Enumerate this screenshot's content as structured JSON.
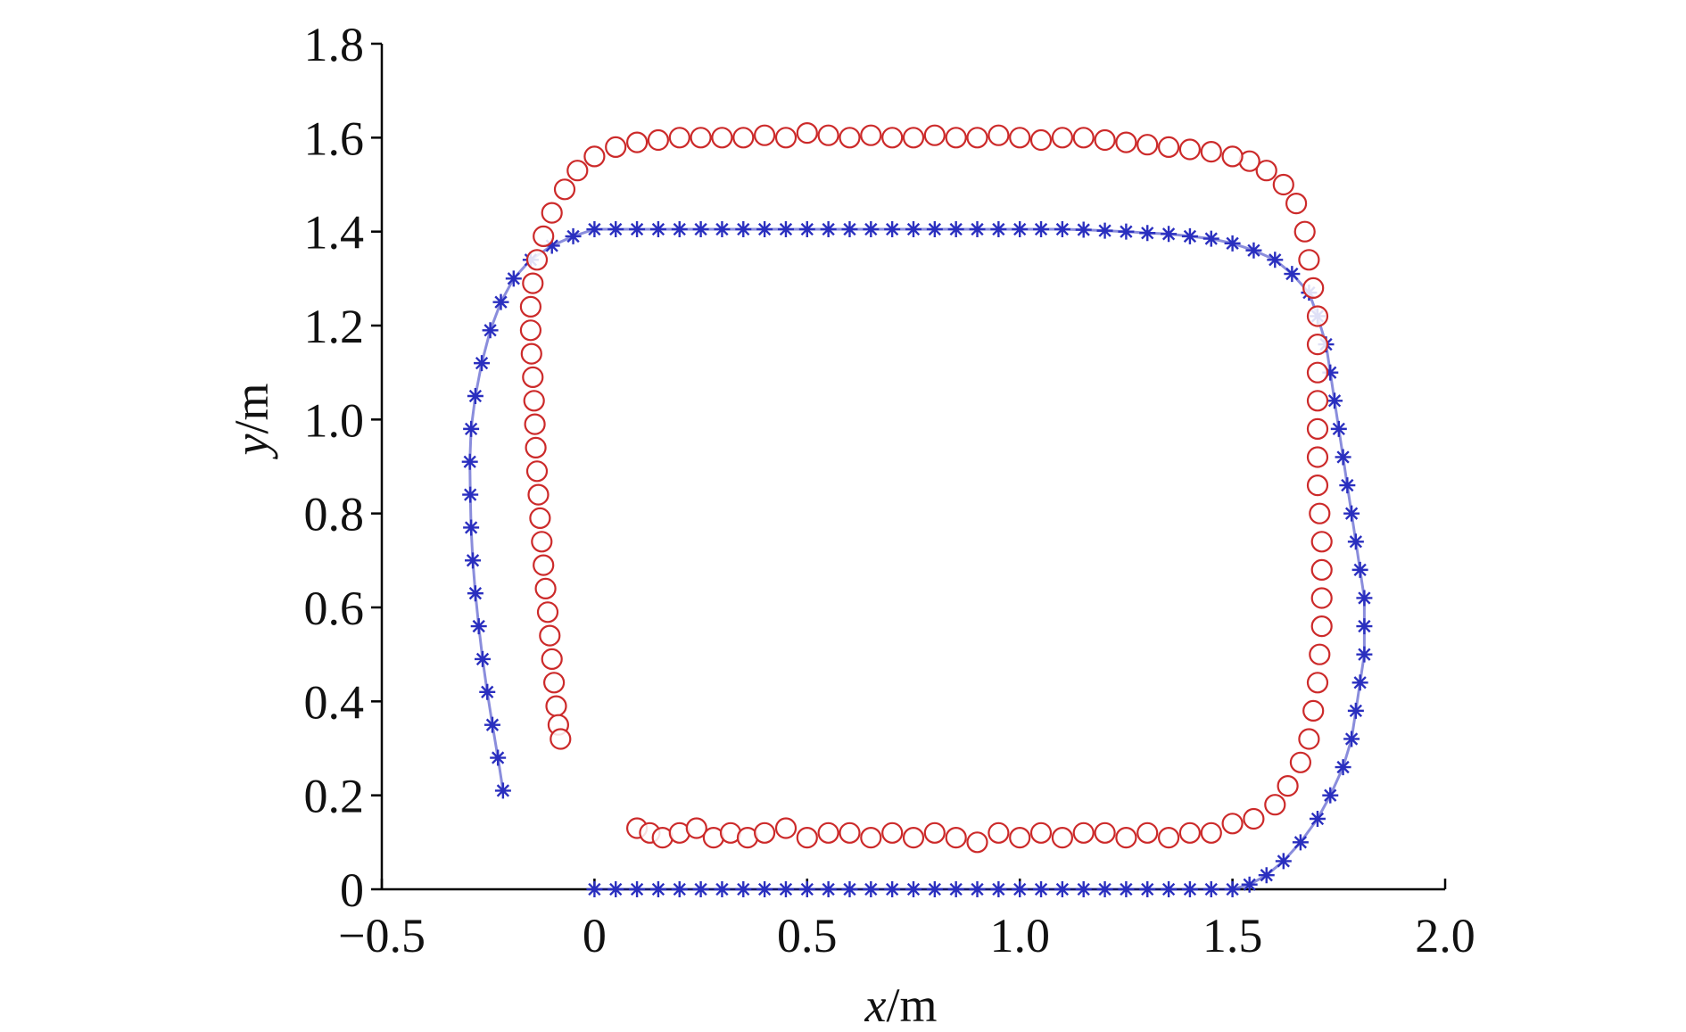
{
  "chart_data": {
    "type": "scatter",
    "xlabel_var": "x",
    "xlabel_unit": "/m",
    "ylabel_var": "y",
    "ylabel_unit": "/m",
    "xlim": [
      -0.5,
      2.0
    ],
    "ylim": [
      0,
      1.8
    ],
    "x_ticks": [
      {
        "value": -0.5,
        "label": "−0.5"
      },
      {
        "value": 0,
        "label": "0"
      },
      {
        "value": 0.5,
        "label": "0.5"
      },
      {
        "value": 1.0,
        "label": "1.0"
      },
      {
        "value": 1.5,
        "label": "1.5"
      },
      {
        "value": 2.0,
        "label": "2.0"
      }
    ],
    "y_ticks": [
      {
        "value": 0,
        "label": "0"
      },
      {
        "value": 0.2,
        "label": "0.2"
      },
      {
        "value": 0.4,
        "label": "0.4"
      },
      {
        "value": 0.6,
        "label": "0.6"
      },
      {
        "value": 0.8,
        "label": "0.8"
      },
      {
        "value": 1.0,
        "label": "1.0"
      },
      {
        "value": 1.2,
        "label": "1.2"
      },
      {
        "value": 1.4,
        "label": "1.4"
      },
      {
        "value": 1.6,
        "label": "1.6"
      },
      {
        "value": 1.8,
        "label": "1.8"
      }
    ],
    "grid": false,
    "legend": "none",
    "series": [
      {
        "marker": "star",
        "color": "#2a2fbf",
        "points": [
          [
            0.0,
            0.0
          ],
          [
            0.05,
            0.0
          ],
          [
            0.1,
            0.0
          ],
          [
            0.15,
            0.0
          ],
          [
            0.2,
            0.0
          ],
          [
            0.25,
            0.0
          ],
          [
            0.3,
            0.0
          ],
          [
            0.35,
            0.0
          ],
          [
            0.4,
            0.0
          ],
          [
            0.45,
            0.0
          ],
          [
            0.5,
            0.0
          ],
          [
            0.55,
            0.0
          ],
          [
            0.6,
            0.0
          ],
          [
            0.65,
            0.0
          ],
          [
            0.7,
            0.0
          ],
          [
            0.75,
            0.0
          ],
          [
            0.8,
            0.0
          ],
          [
            0.85,
            0.0
          ],
          [
            0.9,
            0.0
          ],
          [
            0.95,
            0.0
          ],
          [
            1.0,
            0.0
          ],
          [
            1.05,
            0.0
          ],
          [
            1.1,
            0.0
          ],
          [
            1.15,
            0.0
          ],
          [
            1.2,
            0.0
          ],
          [
            1.25,
            0.0
          ],
          [
            1.3,
            0.0
          ],
          [
            1.35,
            0.0
          ],
          [
            1.4,
            0.0
          ],
          [
            1.45,
            0.0
          ],
          [
            1.5,
            0.0
          ],
          [
            1.54,
            0.01
          ],
          [
            1.58,
            0.03
          ],
          [
            1.62,
            0.06
          ],
          [
            1.66,
            0.1
          ],
          [
            1.7,
            0.15
          ],
          [
            1.73,
            0.2
          ],
          [
            1.76,
            0.26
          ],
          [
            1.78,
            0.32
          ],
          [
            1.79,
            0.38
          ],
          [
            1.8,
            0.44
          ],
          [
            1.81,
            0.5
          ],
          [
            1.81,
            0.56
          ],
          [
            1.81,
            0.62
          ],
          [
            1.8,
            0.68
          ],
          [
            1.79,
            0.74
          ],
          [
            1.78,
            0.8
          ],
          [
            1.77,
            0.86
          ],
          [
            1.76,
            0.92
          ],
          [
            1.75,
            0.98
          ],
          [
            1.74,
            1.04
          ],
          [
            1.73,
            1.1
          ],
          [
            1.72,
            1.16
          ],
          [
            1.7,
            1.22
          ],
          [
            1.68,
            1.27
          ],
          [
            1.64,
            1.31
          ],
          [
            1.6,
            1.34
          ],
          [
            1.55,
            1.36
          ],
          [
            1.5,
            1.375
          ],
          [
            1.45,
            1.385
          ],
          [
            1.4,
            1.39
          ],
          [
            1.35,
            1.395
          ],
          [
            1.3,
            1.397
          ],
          [
            1.25,
            1.4
          ],
          [
            1.2,
            1.402
          ],
          [
            1.15,
            1.404
          ],
          [
            1.1,
            1.405
          ],
          [
            1.05,
            1.405
          ],
          [
            1.0,
            1.405
          ],
          [
            0.95,
            1.405
          ],
          [
            0.9,
            1.405
          ],
          [
            0.85,
            1.405
          ],
          [
            0.8,
            1.405
          ],
          [
            0.75,
            1.405
          ],
          [
            0.7,
            1.405
          ],
          [
            0.65,
            1.405
          ],
          [
            0.6,
            1.405
          ],
          [
            0.55,
            1.405
          ],
          [
            0.5,
            1.405
          ],
          [
            0.45,
            1.405
          ],
          [
            0.4,
            1.405
          ],
          [
            0.35,
            1.405
          ],
          [
            0.3,
            1.405
          ],
          [
            0.25,
            1.405
          ],
          [
            0.2,
            1.405
          ],
          [
            0.15,
            1.405
          ],
          [
            0.1,
            1.405
          ],
          [
            0.05,
            1.405
          ],
          [
            0.0,
            1.405
          ],
          [
            -0.05,
            1.39
          ],
          [
            -0.1,
            1.37
          ],
          [
            -0.15,
            1.34
          ],
          [
            -0.19,
            1.3
          ],
          [
            -0.22,
            1.25
          ],
          [
            -0.245,
            1.19
          ],
          [
            -0.265,
            1.12
          ],
          [
            -0.28,
            1.05
          ],
          [
            -0.29,
            0.98
          ],
          [
            -0.293,
            0.91
          ],
          [
            -0.292,
            0.84
          ],
          [
            -0.29,
            0.77
          ],
          [
            -0.286,
            0.7
          ],
          [
            -0.28,
            0.63
          ],
          [
            -0.272,
            0.56
          ],
          [
            -0.263,
            0.49
          ],
          [
            -0.252,
            0.42
          ],
          [
            -0.24,
            0.35
          ],
          [
            -0.227,
            0.28
          ],
          [
            -0.215,
            0.21
          ]
        ]
      },
      {
        "marker": "circle",
        "color": "#cc2a2a",
        "points": [
          [
            0.1,
            0.13
          ],
          [
            0.13,
            0.12
          ],
          [
            0.16,
            0.11
          ],
          [
            0.2,
            0.12
          ],
          [
            0.24,
            0.13
          ],
          [
            0.28,
            0.11
          ],
          [
            0.32,
            0.12
          ],
          [
            0.36,
            0.11
          ],
          [
            0.4,
            0.12
          ],
          [
            0.45,
            0.13
          ],
          [
            0.5,
            0.11
          ],
          [
            0.55,
            0.12
          ],
          [
            0.6,
            0.12
          ],
          [
            0.65,
            0.11
          ],
          [
            0.7,
            0.12
          ],
          [
            0.75,
            0.11
          ],
          [
            0.8,
            0.12
          ],
          [
            0.85,
            0.11
          ],
          [
            0.9,
            0.1
          ],
          [
            0.95,
            0.12
          ],
          [
            1.0,
            0.11
          ],
          [
            1.05,
            0.12
          ],
          [
            1.1,
            0.11
          ],
          [
            1.15,
            0.12
          ],
          [
            1.2,
            0.12
          ],
          [
            1.25,
            0.11
          ],
          [
            1.3,
            0.12
          ],
          [
            1.35,
            0.11
          ],
          [
            1.4,
            0.12
          ],
          [
            1.45,
            0.12
          ],
          [
            1.5,
            0.14
          ],
          [
            1.55,
            0.15
          ],
          [
            1.6,
            0.18
          ],
          [
            1.63,
            0.22
          ],
          [
            1.66,
            0.27
          ],
          [
            1.68,
            0.32
          ],
          [
            1.69,
            0.38
          ],
          [
            1.7,
            0.44
          ],
          [
            1.705,
            0.5
          ],
          [
            1.71,
            0.56
          ],
          [
            1.71,
            0.62
          ],
          [
            1.71,
            0.68
          ],
          [
            1.71,
            0.74
          ],
          [
            1.705,
            0.8
          ],
          [
            1.7,
            0.86
          ],
          [
            1.7,
            0.92
          ],
          [
            1.7,
            0.98
          ],
          [
            1.7,
            1.04
          ],
          [
            1.7,
            1.1
          ],
          [
            1.7,
            1.16
          ],
          [
            1.7,
            1.22
          ],
          [
            1.69,
            1.28
          ],
          [
            1.68,
            1.34
          ],
          [
            1.67,
            1.4
          ],
          [
            1.65,
            1.46
          ],
          [
            1.62,
            1.5
          ],
          [
            1.58,
            1.53
          ],
          [
            1.54,
            1.55
          ],
          [
            1.5,
            1.56
          ],
          [
            1.45,
            1.57
          ],
          [
            1.4,
            1.575
          ],
          [
            1.35,
            1.58
          ],
          [
            1.3,
            1.585
          ],
          [
            1.25,
            1.59
          ],
          [
            1.2,
            1.595
          ],
          [
            1.15,
            1.6
          ],
          [
            1.1,
            1.6
          ],
          [
            1.05,
            1.595
          ],
          [
            1.0,
            1.6
          ],
          [
            0.95,
            1.605
          ],
          [
            0.9,
            1.6
          ],
          [
            0.85,
            1.6
          ],
          [
            0.8,
            1.605
          ],
          [
            0.75,
            1.6
          ],
          [
            0.7,
            1.6
          ],
          [
            0.65,
            1.605
          ],
          [
            0.6,
            1.6
          ],
          [
            0.55,
            1.605
          ],
          [
            0.5,
            1.61
          ],
          [
            0.45,
            1.6
          ],
          [
            0.4,
            1.605
          ],
          [
            0.35,
            1.6
          ],
          [
            0.3,
            1.6
          ],
          [
            0.25,
            1.6
          ],
          [
            0.2,
            1.6
          ],
          [
            0.15,
            1.595
          ],
          [
            0.1,
            1.59
          ],
          [
            0.05,
            1.58
          ],
          [
            0.0,
            1.56
          ],
          [
            -0.04,
            1.53
          ],
          [
            -0.07,
            1.49
          ],
          [
            -0.1,
            1.44
          ],
          [
            -0.12,
            1.39
          ],
          [
            -0.135,
            1.34
          ],
          [
            -0.145,
            1.29
          ],
          [
            -0.15,
            1.24
          ],
          [
            -0.15,
            1.19
          ],
          [
            -0.148,
            1.14
          ],
          [
            -0.145,
            1.09
          ],
          [
            -0.142,
            1.04
          ],
          [
            -0.14,
            0.99
          ],
          [
            -0.138,
            0.94
          ],
          [
            -0.135,
            0.89
          ],
          [
            -0.132,
            0.84
          ],
          [
            -0.128,
            0.79
          ],
          [
            -0.124,
            0.74
          ],
          [
            -0.12,
            0.69
          ],
          [
            -0.115,
            0.64
          ],
          [
            -0.11,
            0.59
          ],
          [
            -0.105,
            0.54
          ],
          [
            -0.1,
            0.49
          ],
          [
            -0.095,
            0.44
          ],
          [
            -0.09,
            0.39
          ],
          [
            -0.085,
            0.35
          ],
          [
            -0.08,
            0.32
          ]
        ]
      }
    ]
  }
}
